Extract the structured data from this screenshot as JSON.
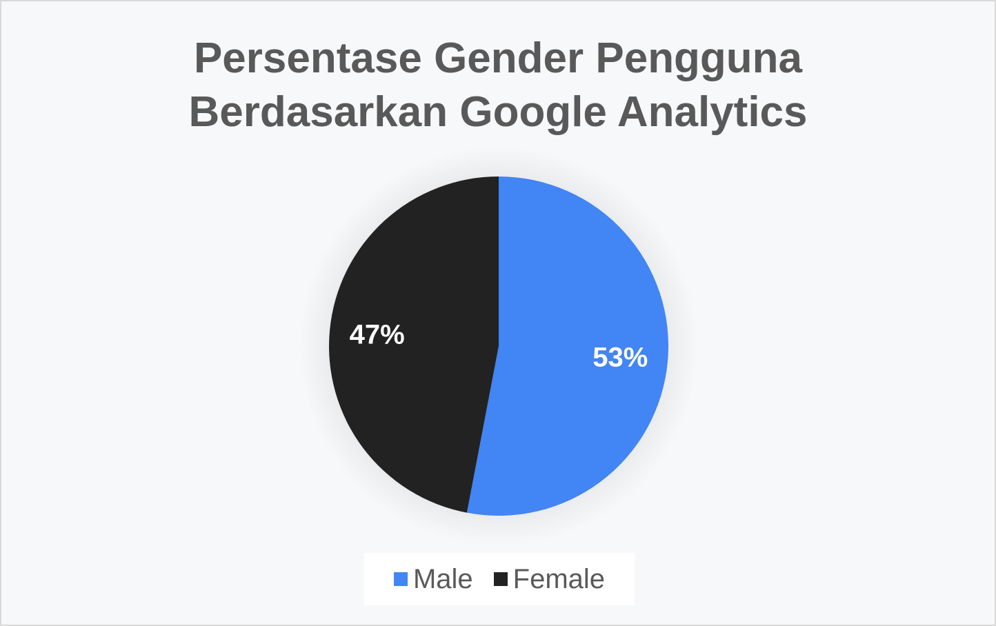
{
  "chart_data": {
    "type": "pie",
    "title_lines": [
      "Persentase  Gender Pengguna",
      "Berdasarkan  Google Analytics"
    ],
    "categories": [
      "Male",
      "Female"
    ],
    "values": [
      53,
      47
    ],
    "data_labels": [
      "53%",
      "47%"
    ],
    "colors": [
      "#4285f4",
      "#222222"
    ],
    "legend_position": "bottom"
  }
}
